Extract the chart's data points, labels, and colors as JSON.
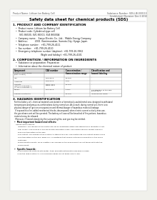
{
  "bg_color": "#f0f0eb",
  "page_bg": "#ffffff",
  "header_top_left": "Product Name: Lithium Ion Battery Cell",
  "header_top_right": "Substance Number: SDS-LIB-000110\nEstablished / Revision: Dec.1.2010",
  "title": "Safety data sheet for chemical products (SDS)",
  "section1_header": "1. PRODUCT AND COMPANY IDENTIFICATION",
  "section1_lines": [
    "  •  Product name: Lithium Ion Battery Cell",
    "  •  Product code: Cylindrical-type cell",
    "       SV1 86500, SV1 86500, SV4 86500A",
    "  •  Company name:   Sanyo Electric Co., Ltd.,  Mobile Energy Company",
    "  •  Address:          2001  Kamimunakan, Sumoto-City, Hyogo, Japan",
    "  •  Telephone number:   +81-799-26-4111",
    "  •  Fax number:   +81-799-26-4120",
    "  •  Emergency telephone number (daytime): +81-799-26-3962",
    "                                     (Night and holiday): +81-799-26-4101"
  ],
  "section2_header": "2. COMPOSITION / INFORMATION ON INGREDIENTS",
  "section2_lines": [
    "  •  Substance or preparation: Preparation",
    "  •  Information about the chemical nature of product:"
  ],
  "table_headers": [
    "Component",
    "CAS number",
    "Concentration /\nConcentration range",
    "Classification and\nhazard labeling"
  ],
  "table_rows": [
    [
      "Lithium cobalt oxide\n(LiMn₂CoNiO₂)",
      "-",
      "30-50%",
      "-"
    ],
    [
      "Iron",
      "7439-89-6",
      "16-20%",
      "-"
    ],
    [
      "Aluminum",
      "7429-90-5",
      "2-5%",
      "-"
    ],
    [
      "Graphite\n(Metal in graphite-1)\n(Al-Mn in graphite-1)",
      "77867-42-5\n77867-44-0",
      "10-20%",
      "-"
    ],
    [
      "Copper",
      "7440-50-8",
      "5-15%",
      "Sensitization of the skin\ngroup No.2"
    ],
    [
      "Organic electrolyte",
      "-",
      "10-20%",
      "Inflammable liquid"
    ]
  ],
  "section3_header": "3. HAZARDS IDENTIFICATION",
  "section3_para1": "For this battery cell, chemical materials are stored in a hermetically-sealed metal case, designed to withstand\ntemperatures and pressures-combinations during normal use. As a result, during normal use, there is no\nphysical danger of ignition or evaporation and thermal-danger of hazardous materials leakage.\n  If exposed to a fire, added mechanical shocks, decomposed, when electric current actively miss-use,\nthe gas release vent will be operated. The battery cell case will be breached of fire-portions, hazardous\nmaterials may be released.\n  Moreover, if heated strongly by the surrounding fire, soot gas may be emitted.",
  "section3_bullet1": "•  Most important hazard and effects:",
  "section3_sub1": "Human health effects:\n    Inhalation: The release of the electrolyte has an anesthesia action and stimulates in respiratory tract.\n    Skin contact: The release of the electrolyte stimulates a skin. The electrolyte skin contact causes a\n    sore and stimulation on the skin.\n    Eye contact: The release of the electrolyte stimulates eyes. The electrolyte eye contact causes a sore\n    and stimulation on the eye. Especially, a substance that causes a strong inflammation of the eye is\n    contained.\n    Environmental effects: Since a battery cell remains in the environment, do not throw out it into the\n    environment.",
  "section3_bullet2": "•  Specific hazards:",
  "section3_sub2": "   If the electrolyte contacts with water, it will generate detrimental hydrogen fluoride.\n   Since the lead-electrolyte is inflammable liquid, do not bring close to fire."
}
